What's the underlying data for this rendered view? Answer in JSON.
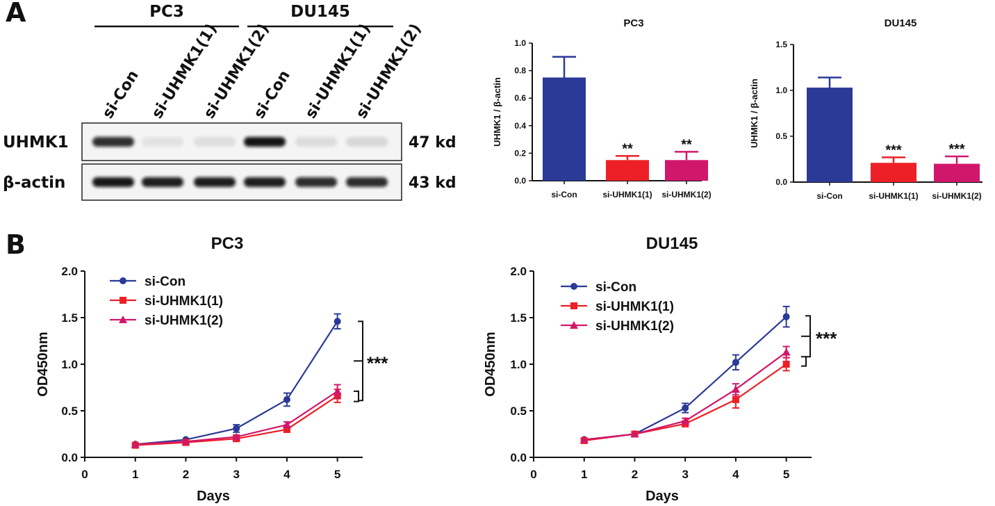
{
  "panel_labels": [
    "A",
    "B"
  ],
  "western_blot": {
    "cell_lines": [
      "PC3",
      "DU145"
    ],
    "lanes": [
      "si-Con",
      "si-UHMK1(1)",
      "si-UHMK1(2)",
      "si-Con",
      "si-UHMK1(1)",
      "si-UHMK1(2)"
    ],
    "rows": [
      {
        "protein": "UHMK1",
        "size": "47 kd",
        "intensity": [
          0.85,
          0.07,
          0.09,
          0.97,
          0.1,
          0.12
        ]
      },
      {
        "protein": "β-actin",
        "size": "43 kd",
        "intensity": [
          0.95,
          0.92,
          0.93,
          0.92,
          0.86,
          0.86
        ]
      }
    ],
    "colors": {
      "band": "#111111",
      "frame": "#222222"
    }
  },
  "chart_data": [
    {
      "id": "bar-pc3",
      "type": "bar",
      "title": "PC3",
      "ylabel": "UHMK1 / β-actin",
      "xlabel": "",
      "categories": [
        "si-Con",
        "si-UHMK1(1)",
        "si-UHMK1(2)"
      ],
      "values": [
        0.75,
        0.15,
        0.15
      ],
      "errors": [
        0.15,
        0.03,
        0.06
      ],
      "significance": [
        "",
        "**",
        "**"
      ],
      "colors": [
        "#2b3a97",
        "#ec2026",
        "#d1176c"
      ],
      "ylim": [
        0,
        1.0
      ],
      "yticks": [
        "0.0",
        "0.2",
        "0.4",
        "0.6",
        "0.8",
        "1.0"
      ]
    },
    {
      "id": "bar-du145",
      "type": "bar",
      "title": "DU145",
      "ylabel": "UHMK1 / β-actin",
      "xlabel": "",
      "categories": [
        "si-Con",
        "si-UHMK1(1)",
        "si-UHMK1(2)"
      ],
      "values": [
        1.03,
        0.21,
        0.2
      ],
      "errors": [
        0.11,
        0.06,
        0.08
      ],
      "significance": [
        "",
        "***",
        "***"
      ],
      "colors": [
        "#2b3a97",
        "#ec2026",
        "#d1176c"
      ],
      "ylim": [
        0,
        1.5
      ],
      "yticks": [
        "0.0",
        "0.5",
        "1.0",
        "1.5"
      ]
    },
    {
      "id": "line-pc3",
      "type": "line",
      "title": "PC3",
      "xlabel": "Days",
      "ylabel": "OD450nm",
      "x": [
        1,
        2,
        3,
        4,
        5
      ],
      "xlim": [
        0,
        5.5
      ],
      "xticks": [
        "0",
        "1",
        "2",
        "3",
        "4",
        "5"
      ],
      "ylim": [
        0,
        2.0
      ],
      "yticks": [
        "0.0",
        "0.5",
        "1.0",
        "1.5",
        "2.0"
      ],
      "series": [
        {
          "name": "si-Con",
          "marker": "circle",
          "color": "#2b3a97",
          "values": [
            0.14,
            0.19,
            0.31,
            0.62,
            1.46
          ],
          "errors": [
            0.01,
            0.01,
            0.04,
            0.07,
            0.08
          ]
        },
        {
          "name": "si-UHMK1(1)",
          "marker": "square",
          "color": "#ec2026",
          "values": [
            0.13,
            0.16,
            0.2,
            0.3,
            0.66
          ],
          "errors": [
            0.01,
            0.01,
            0.02,
            0.03,
            0.07
          ]
        },
        {
          "name": "si-UHMK1(2)",
          "marker": "triangle",
          "color": "#d1176c",
          "values": [
            0.14,
            0.17,
            0.22,
            0.35,
            0.71
          ],
          "errors": [
            0.01,
            0.01,
            0.02,
            0.03,
            0.07
          ]
        }
      ],
      "significance": "***",
      "legend": "top-left"
    },
    {
      "id": "line-du145",
      "type": "line",
      "title": "DU145",
      "xlabel": "Days",
      "ylabel": "OD450nm",
      "x": [
        1,
        2,
        3,
        4,
        5
      ],
      "xlim": [
        0,
        5.5
      ],
      "xticks": [
        "0",
        "1",
        "2",
        "3",
        "4",
        "5"
      ],
      "ylim": [
        0,
        2.0
      ],
      "yticks": [
        "0.0",
        "0.5",
        "1.0",
        "1.5",
        "2.0"
      ],
      "series": [
        {
          "name": "si-Con",
          "marker": "circle",
          "color": "#2b3a97",
          "values": [
            0.19,
            0.25,
            0.53,
            1.02,
            1.51
          ],
          "errors": [
            0.01,
            0.01,
            0.05,
            0.08,
            0.11
          ]
        },
        {
          "name": "si-UHMK1(1)",
          "marker": "square",
          "color": "#ec2026",
          "values": [
            0.18,
            0.25,
            0.36,
            0.62,
            1.0
          ],
          "errors": [
            0.01,
            0.01,
            0.03,
            0.09,
            0.07
          ]
        },
        {
          "name": "si-UHMK1(2)",
          "marker": "triangle",
          "color": "#d1176c",
          "values": [
            0.19,
            0.25,
            0.39,
            0.73,
            1.13
          ],
          "errors": [
            0.01,
            0.01,
            0.03,
            0.06,
            0.06
          ]
        }
      ],
      "significance": "***",
      "legend": "top-left"
    }
  ]
}
